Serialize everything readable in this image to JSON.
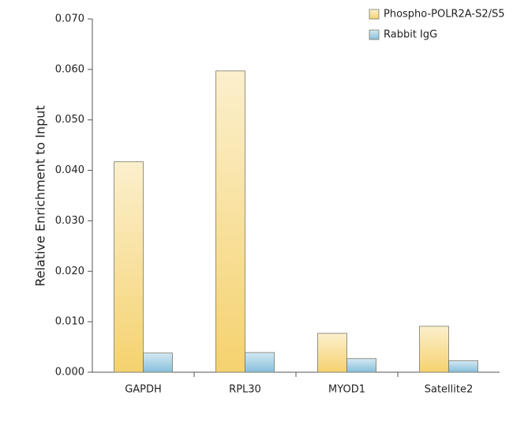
{
  "chart_data": {
    "type": "bar",
    "y_label": "Relative Enrichment to Input",
    "categories": [
      "GAPDH",
      "RPL30",
      "MYOD1",
      "Satellite2"
    ],
    "series": [
      {
        "name": "Phospho-POLR2A-S2/S5",
        "color": "#f5d26f",
        "values": [
          0.0417,
          0.0597,
          0.0077,
          0.0091
        ]
      },
      {
        "name": "Rabbit IgG",
        "color": "#86bfdc",
        "values": [
          0.0038,
          0.0039,
          0.0027,
          0.0023
        ]
      }
    ],
    "ylim": [
      0,
      0.07
    ],
    "yticks": [
      {
        "value": 0,
        "label": "0.000"
      },
      {
        "value": 0.01,
        "label": "0.010"
      },
      {
        "value": 0.02,
        "label": "0.020"
      },
      {
        "value": 0.03,
        "label": "0.030"
      },
      {
        "value": 0.04,
        "label": "0.040"
      },
      {
        "value": 0.05,
        "label": "0.050"
      },
      {
        "value": 0.06,
        "label": "0.060"
      },
      {
        "value": 0.07,
        "label": "0.070"
      }
    ],
    "legend": "top-right"
  }
}
